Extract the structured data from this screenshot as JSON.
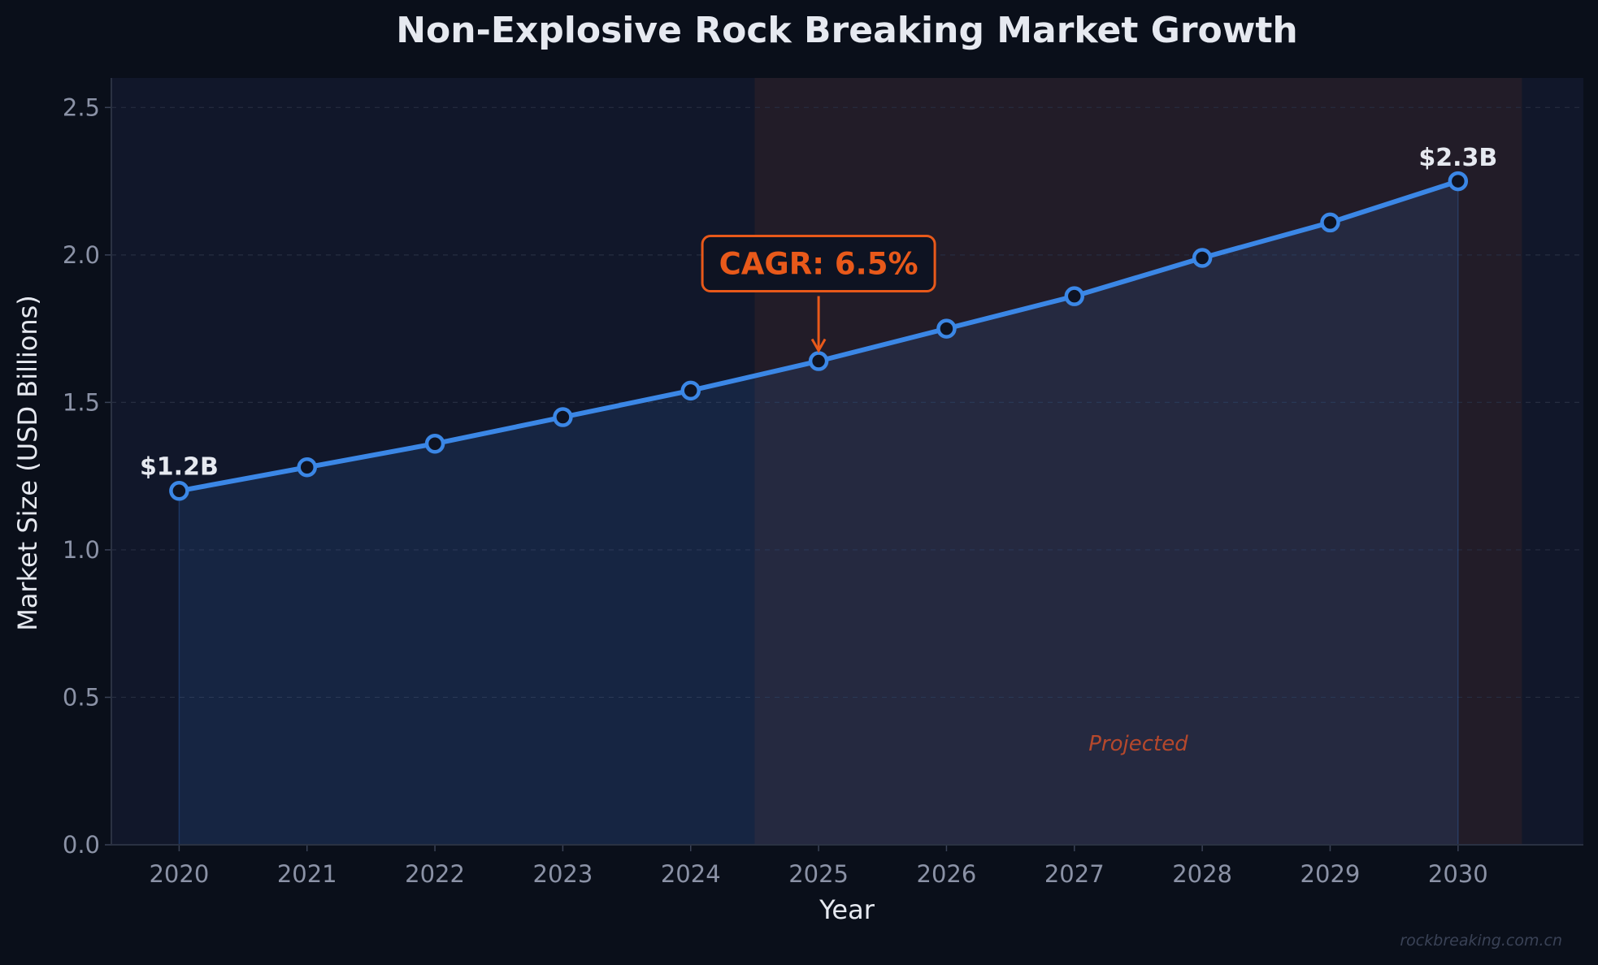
{
  "chart_data": {
    "type": "line",
    "title": "Non-Explosive Rock Breaking Market Growth",
    "xlabel": "Year",
    "ylabel": "Market Size (USD Billions)",
    "x": [
      2020,
      2021,
      2022,
      2023,
      2024,
      2025,
      2026,
      2027,
      2028,
      2029,
      2030
    ],
    "series": [
      {
        "values": [
          1.2,
          1.28,
          1.36,
          1.45,
          1.54,
          1.64,
          1.75,
          1.86,
          1.99,
          2.11,
          2.25
        ]
      }
    ],
    "ylim": [
      0,
      2.6
    ],
    "xlim": [
      2019.47,
      2030.98
    ],
    "yticks": [
      "0.0",
      "0.5",
      "1.0",
      "1.5",
      "2.0",
      "2.5"
    ],
    "xticks": [
      "2020",
      "2021",
      "2022",
      "2023",
      "2024",
      "2025",
      "2026",
      "2027",
      "2028",
      "2029",
      "2030"
    ],
    "grid": true,
    "projected_range": [
      2024.5,
      2030.5
    ],
    "projected_label": "Projected",
    "annotations": {
      "start_label": "$1.2B",
      "end_label": "$2.3B",
      "cagr_label": "CAGR: 6.5%",
      "cagr_year": 2025
    },
    "watermark": "rockbreaking.com.cn",
    "colors": {
      "background": "#0a0f1a",
      "plot_background": "#11172a",
      "line": "#3b87e6",
      "fill": "#18294a",
      "projected_band": "#2a1f28",
      "accent": "#e8591a",
      "text": "#e6e9f0",
      "tick_text": "#8b92a6"
    }
  }
}
